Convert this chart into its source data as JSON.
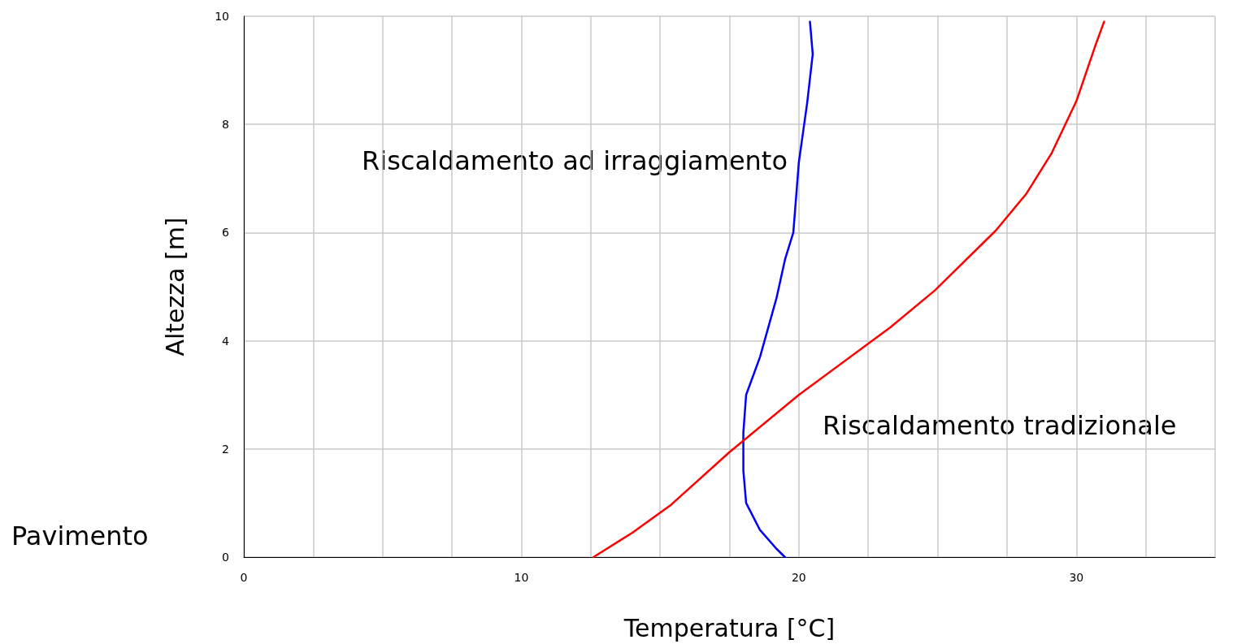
{
  "chart_data": {
    "type": "line",
    "xlabel": "Temperatura [°C]",
    "ylabel": "Altezza [m]",
    "annotations": [
      "Pavimento"
    ],
    "xlim": [
      0,
      35
    ],
    "ylim": [
      0,
      10
    ],
    "xticks": [
      0,
      {
        "value": 2.5,
        "label": null
      },
      {
        "value": 5,
        "label": null
      },
      {
        "value": 7.5,
        "label": null
      },
      10,
      {
        "value": 12.5,
        "label": null
      },
      {
        "value": 15,
        "label": null
      },
      {
        "value": 17.5,
        "label": null
      },
      20,
      {
        "value": 22.5,
        "label": null
      },
      {
        "value": 25,
        "label": null
      },
      {
        "value": 27.5,
        "label": null
      },
      30,
      {
        "value": 32.5,
        "label": null
      },
      {
        "value": 35,
        "label": null
      }
    ],
    "yticks": [
      0,
      2,
      4,
      6,
      8,
      10
    ],
    "grid": true,
    "marker": "none",
    "line_style": "solid",
    "legend": false,
    "series": [
      {
        "name": "Riscaldamento ad irraggiamento",
        "color": "#0000ff",
        "x": [
          19.5,
          19.2,
          18.6,
          18.1,
          18.0,
          18.0,
          18.1,
          18.6,
          19.2,
          19.5,
          19.8,
          20.0,
          20.3,
          20.5,
          20.4
        ],
        "values": [
          0,
          0.15,
          0.5,
          1.0,
          1.6,
          2.3,
          3.0,
          3.7,
          4.8,
          5.5,
          6.0,
          7.3,
          8.4,
          9.3,
          9.9
        ]
      },
      {
        "name": "Riscaldamento tradizionale",
        "color": "#ff0000",
        "x": [
          12.6,
          14.0,
          15.4,
          17.5,
          20.0,
          23.3,
          24.9,
          27.1,
          28.2,
          29.1,
          30.0,
          30.7,
          31.0
        ],
        "values": [
          0,
          0.45,
          0.97,
          1.94,
          3.0,
          4.25,
          4.93,
          6.04,
          6.72,
          7.46,
          8.43,
          9.48,
          9.9
        ]
      }
    ]
  }
}
